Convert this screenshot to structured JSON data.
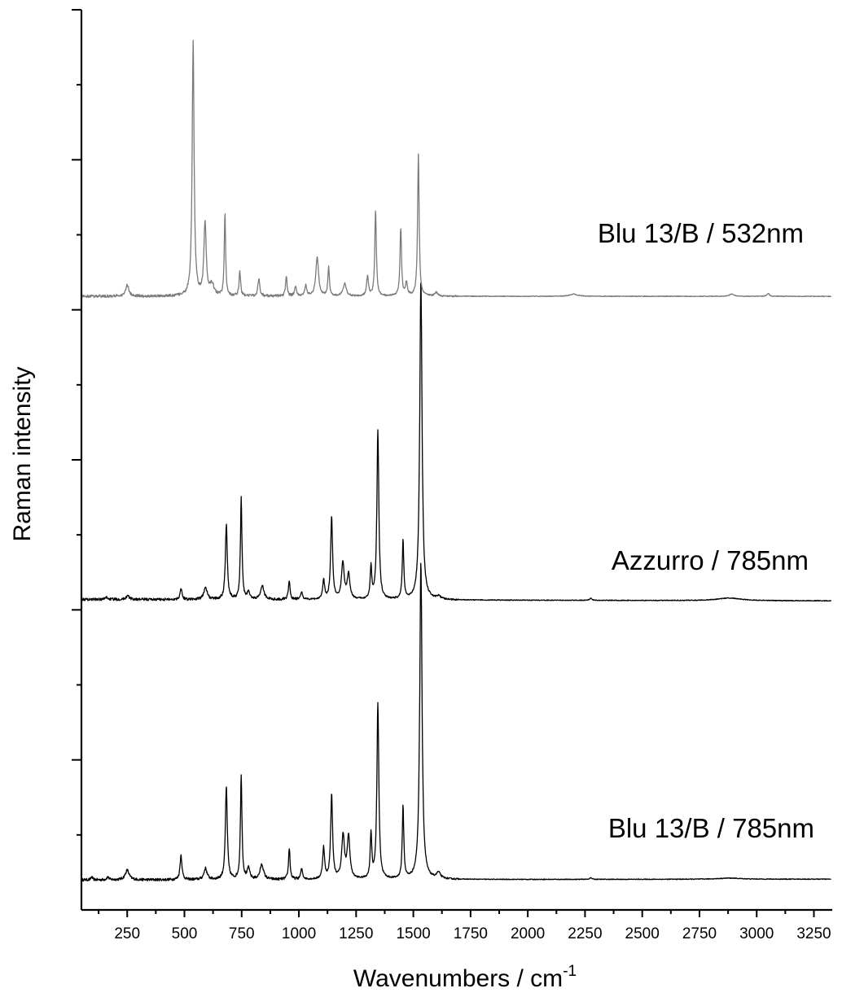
{
  "chart_data": {
    "type": "line",
    "xlabel": "Wavenumbers / cm",
    "xlabel_superscript": "-1",
    "ylabel": "Raman intensity",
    "xlim": [
      50,
      3330
    ],
    "ylim": [
      0,
      120
    ],
    "x_ticks": [
      250,
      500,
      750,
      1000,
      1250,
      1500,
      1750,
      2000,
      2250,
      2500,
      2750,
      3000,
      3250
    ],
    "x_tick_labels": [
      "250",
      "500",
      "750",
      "1000",
      "1250",
      "1500",
      "1750",
      "2000",
      "2250",
      "2500",
      "2750",
      "3000",
      "3250"
    ],
    "x_minor_ticks": [
      125,
      375,
      625,
      875,
      1125,
      1375,
      1625,
      1875,
      2125,
      2375,
      2625,
      2875,
      3125
    ],
    "y_major_ticks": [
      20,
      40,
      60,
      80,
      100,
      120
    ],
    "y_minor_ticks": [
      10,
      30,
      50,
      70,
      90,
      110
    ],
    "y_tick_labels_shown": false,
    "grid": false,
    "legend": "none",
    "series": [
      {
        "name": "Blu 13/B / 785nm",
        "color": "#000000",
        "baseline": 4,
        "tail_end": 4.1,
        "peaks": [
          {
            "x": 95,
            "h": 0.4,
            "w": 4
          },
          {
            "x": 165,
            "h": 0.4,
            "w": 5
          },
          {
            "x": 250,
            "h": 1.3,
            "w": 10
          },
          {
            "x": 485,
            "h": 3.3,
            "w": 5
          },
          {
            "x": 592,
            "h": 1.5,
            "w": 8
          },
          {
            "x": 683,
            "h": 12.4,
            "w": 5
          },
          {
            "x": 748,
            "h": 14.0,
            "w": 4
          },
          {
            "x": 780,
            "h": 1.5,
            "w": 6
          },
          {
            "x": 838,
            "h": 2.0,
            "w": 9
          },
          {
            "x": 958,
            "h": 4.2,
            "w": 4
          },
          {
            "x": 1012,
            "h": 1.4,
            "w": 5
          },
          {
            "x": 1108,
            "h": 4.2,
            "w": 5
          },
          {
            "x": 1143,
            "h": 11.3,
            "w": 5
          },
          {
            "x": 1193,
            "h": 5.8,
            "w": 7
          },
          {
            "x": 1217,
            "h": 5.6,
            "w": 7
          },
          {
            "x": 1315,
            "h": 6.0,
            "w": 4
          },
          {
            "x": 1345,
            "h": 23.5,
            "w": 5
          },
          {
            "x": 1455,
            "h": 9.7,
            "w": 4
          },
          {
            "x": 1533,
            "h": 42.4,
            "w": 6
          },
          {
            "x": 1610,
            "h": 0.8,
            "w": 10
          },
          {
            "x": 2275,
            "h": 0.2,
            "w": 6
          },
          {
            "x": 2880,
            "h": 0.15,
            "w": 60
          }
        ]
      },
      {
        "name": "Azzurro / 785nm",
        "color": "#000000",
        "baseline": 41.4,
        "tail_end": 41.2,
        "peaks": [
          {
            "x": 160,
            "h": 0.3,
            "w": 6
          },
          {
            "x": 252,
            "h": 0.5,
            "w": 8
          },
          {
            "x": 485,
            "h": 1.5,
            "w": 5
          },
          {
            "x": 592,
            "h": 1.7,
            "w": 8
          },
          {
            "x": 683,
            "h": 10.0,
            "w": 5
          },
          {
            "x": 748,
            "h": 13.5,
            "w": 4
          },
          {
            "x": 780,
            "h": 1.0,
            "w": 6
          },
          {
            "x": 840,
            "h": 1.8,
            "w": 9
          },
          {
            "x": 958,
            "h": 2.6,
            "w": 4
          },
          {
            "x": 1012,
            "h": 1.0,
            "w": 5
          },
          {
            "x": 1108,
            "h": 2.6,
            "w": 5
          },
          {
            "x": 1143,
            "h": 11.0,
            "w": 5
          },
          {
            "x": 1192,
            "h": 4.8,
            "w": 7
          },
          {
            "x": 1217,
            "h": 3.3,
            "w": 7
          },
          {
            "x": 1315,
            "h": 4.3,
            "w": 4
          },
          {
            "x": 1345,
            "h": 22.6,
            "w": 5
          },
          {
            "x": 1455,
            "h": 7.8,
            "w": 4
          },
          {
            "x": 1533,
            "h": 42.5,
            "w": 6
          },
          {
            "x": 1610,
            "h": 0.4,
            "w": 10
          },
          {
            "x": 2275,
            "h": 0.3,
            "w": 6
          },
          {
            "x": 2880,
            "h": 0.35,
            "w": 60
          }
        ]
      },
      {
        "name": "Blu 13/B / 532nm",
        "color": "#7a7a7a",
        "baseline": 81.8,
        "tail_end": 81.8,
        "peaks": [
          {
            "x": 250,
            "h": 1.5,
            "w": 8
          },
          {
            "x": 538,
            "h": 33.8,
            "w": 5
          },
          {
            "x": 590,
            "h": 9.7,
            "w": 6
          },
          {
            "x": 620,
            "h": 1.5,
            "w": 10
          },
          {
            "x": 677,
            "h": 11.0,
            "w": 3.5
          },
          {
            "x": 742,
            "h": 3.3,
            "w": 4
          },
          {
            "x": 825,
            "h": 2.3,
            "w": 5
          },
          {
            "x": 945,
            "h": 2.6,
            "w": 4
          },
          {
            "x": 985,
            "h": 1.2,
            "w": 5
          },
          {
            "x": 1030,
            "h": 1.4,
            "w": 5
          },
          {
            "x": 1080,
            "h": 5.2,
            "w": 7
          },
          {
            "x": 1130,
            "h": 3.9,
            "w": 4
          },
          {
            "x": 1200,
            "h": 1.7,
            "w": 8
          },
          {
            "x": 1300,
            "h": 2.6,
            "w": 5
          },
          {
            "x": 1335,
            "h": 11.4,
            "w": 4
          },
          {
            "x": 1445,
            "h": 9.1,
            "w": 4
          },
          {
            "x": 1470,
            "h": 1.8,
            "w": 5
          },
          {
            "x": 1522,
            "h": 19.0,
            "w": 4
          },
          {
            "x": 1600,
            "h": 0.5,
            "w": 8
          },
          {
            "x": 2200,
            "h": 0.3,
            "w": 20
          },
          {
            "x": 2890,
            "h": 0.3,
            "w": 12
          },
          {
            "x": 3050,
            "h": 0.4,
            "w": 6
          }
        ]
      }
    ]
  }
}
